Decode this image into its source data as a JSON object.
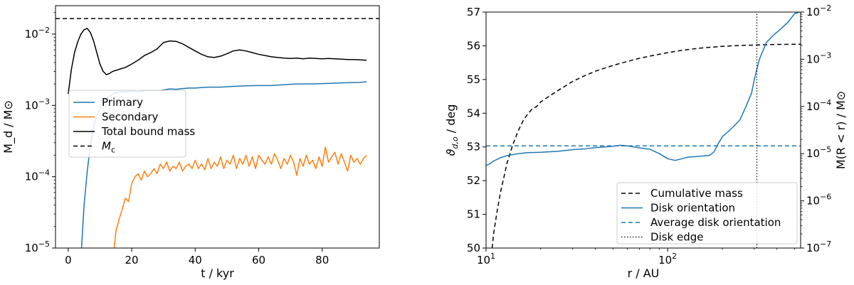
{
  "chart_data": [
    {
      "type": "line",
      "xlabel": "t / kyr",
      "ylabel": "M$_d$ / M$_\\odot$",
      "ylabel_display": "M_d / M⊙",
      "yscale": "log",
      "xlim": [
        -4,
        98
      ],
      "ylim": [
        1e-05,
        0.025
      ],
      "xticks": [
        0,
        20,
        40,
        60,
        80
      ],
      "xtick_labels": [
        "0",
        "20",
        "40",
        "60",
        "80"
      ],
      "yticks": [
        1e-05,
        0.0001,
        0.001,
        0.01
      ],
      "ytick_labels": [
        {
          "base": "10",
          "exp": "−5"
        },
        {
          "base": "10",
          "exp": "−4"
        },
        {
          "base": "10",
          "exp": "−3"
        },
        {
          "base": "10",
          "exp": "−2"
        }
      ],
      "grid": false,
      "legend_position": "center-left",
      "series": [
        {
          "name": "Primary",
          "color": "#1f77b4",
          "style": "solid",
          "x": [
            4.2,
            5,
            6,
            7,
            8,
            9,
            10,
            11,
            12,
            13,
            14,
            15,
            16,
            18,
            20,
            22,
            24,
            26,
            28,
            30,
            32,
            34,
            36,
            38,
            40,
            44,
            48,
            52,
            56,
            60,
            64,
            68,
            72,
            76,
            80,
            84,
            88,
            92,
            94
          ],
          "y": [
            1e-05,
            4e-05,
            0.00012,
            0.00028,
            0.0005,
            0.0007,
            0.0009,
            0.0011,
            0.00125,
            0.00135,
            0.00145,
            0.0015,
            0.00155,
            0.00155,
            0.00158,
            0.00155,
            0.0016,
            0.00162,
            0.0016,
            0.00165,
            0.0017,
            0.00168,
            0.00172,
            0.00175,
            0.00175,
            0.0018,
            0.0018,
            0.00185,
            0.00188,
            0.0019,
            0.0019,
            0.00195,
            0.002,
            0.002,
            0.00202,
            0.00205,
            0.00208,
            0.0021,
            0.00215
          ]
        },
        {
          "name": "Secondary",
          "color": "#ff7f0e",
          "style": "solid",
          "x": [
            14.5,
            15,
            16,
            17,
            18,
            19,
            20,
            21,
            22,
            23,
            24,
            25,
            26,
            27,
            28,
            29,
            30,
            31,
            32,
            33,
            34,
            35,
            36,
            37,
            38,
            39,
            40,
            41,
            42,
            43,
            44,
            45,
            46,
            47,
            48,
            49,
            50,
            51,
            52,
            53,
            54,
            55,
            56,
            57,
            58,
            59,
            60,
            61,
            62,
            63,
            64,
            65,
            66,
            67,
            68,
            69,
            70,
            71,
            72,
            73,
            74,
            75,
            76,
            77,
            78,
            79,
            80,
            81,
            82,
            83,
            84,
            85,
            86,
            87,
            88,
            89,
            90,
            91,
            92,
            93,
            94
          ],
          "y": [
            1e-05,
            1.7e-05,
            2.5e-05,
            3.5e-05,
            5e-05,
            4.5e-05,
            8e-05,
            0.0001,
            0.00011,
            9e-05,
            0.00012,
            0.0001,
            0.00011,
            0.00013,
            0.00011,
            0.00015,
            0.00013,
            0.00016,
            0.00012,
            0.00014,
            0.00013,
            0.00016,
            0.00012,
            0.00014,
            0.00015,
            0.00013,
            0.00017,
            0.00013,
            0.00015,
            0.000125,
            0.00018,
            0.00013,
            0.00016,
            0.00014,
            0.00019,
            0.00013,
            0.00017,
            0.00015,
            0.0002,
            0.00013,
            0.00018,
            0.00015,
            0.0002,
            0.00014,
            0.00019,
            0.00013,
            0.0002,
            0.00017,
            0.00015,
            0.00019,
            0.00015,
            0.00021,
            0.00017,
            0.00013,
            0.00018,
            0.00015,
            0.0002,
            0.00016,
            0.000105,
            0.00018,
            0.00014,
            0.0002,
            0.00015,
            0.00017,
            0.00013,
            0.00019,
            0.00014,
            0.00026,
            0.00016,
            0.00019,
            0.00022,
            0.00015,
            0.00021,
            0.00016,
            0.00012,
            0.0002,
            0.00016,
            0.00018,
            0.00015,
            0.00018,
            0.0002
          ]
        },
        {
          "name": "Total bound mass",
          "color": "#000000",
          "style": "solid",
          "x": [
            0,
            1,
            2,
            3,
            4,
            5,
            6,
            7,
            8,
            9,
            10,
            11,
            12,
            13,
            14,
            16,
            18,
            20,
            22,
            24,
            26,
            28,
            30,
            32,
            34,
            36,
            38,
            40,
            42,
            44,
            46,
            48,
            50,
            52,
            54,
            56,
            58,
            60,
            62,
            64,
            66,
            68,
            70,
            72,
            74,
            76,
            78,
            80,
            82,
            84,
            86,
            88,
            90,
            92,
            94
          ],
          "y": [
            0.00145,
            0.0032,
            0.0055,
            0.0078,
            0.01,
            0.0115,
            0.012,
            0.0105,
            0.008,
            0.0055,
            0.0038,
            0.003,
            0.0027,
            0.0028,
            0.003,
            0.0032,
            0.0034,
            0.0038,
            0.0043,
            0.005,
            0.0055,
            0.0062,
            0.0076,
            0.008,
            0.0079,
            0.0073,
            0.0065,
            0.0058,
            0.0052,
            0.0048,
            0.0047,
            0.0049,
            0.0053,
            0.0058,
            0.006,
            0.0058,
            0.0055,
            0.0052,
            0.005,
            0.0048,
            0.0047,
            0.0046,
            0.00455,
            0.0046,
            0.0045,
            0.0046,
            0.00455,
            0.0045,
            0.00455,
            0.0045,
            0.00445,
            0.0044,
            0.0044,
            0.00435,
            0.0043
          ]
        },
        {
          "name": "$M_{\\rm c}$",
          "color": "#000000",
          "style": "dashed",
          "x": [
            -4,
            98
          ],
          "y": [
            0.0165,
            0.0165
          ]
        }
      ],
      "legend": [
        {
          "label": "Primary",
          "color": "#1f77b4",
          "style": "solid"
        },
        {
          "label": "Secondary",
          "color": "#ff7f0e",
          "style": "solid"
        },
        {
          "label": "Total bound mass",
          "color": "#000000",
          "style": "solid"
        },
        {
          "label": "M",
          "sub": "c",
          "color": "#000000",
          "style": "dashed"
        }
      ]
    },
    {
      "type": "line",
      "xlabel": "r / AU",
      "xscale": "log",
      "xlim": [
        10,
        540
      ],
      "xticks": [
        10,
        100
      ],
      "xtick_labels": [
        {
          "base": "10",
          "exp": "1"
        },
        {
          "base": "10",
          "exp": "2"
        }
      ],
      "xminor_ticks": [
        20,
        30,
        40,
        50,
        60,
        70,
        80,
        90,
        200,
        300,
        400,
        500
      ],
      "ylabel_left": "ϑ_{d,o} / deg",
      "ylim_left": [
        50,
        57
      ],
      "yticks_left": [
        50,
        51,
        52,
        53,
        54,
        55,
        56,
        57
      ],
      "ylabel_right": "M(R < r) / M⊙",
      "yscale_right": "log",
      "ylim_right": [
        1e-07,
        0.01
      ],
      "yticks_right": [
        1e-07,
        1e-06,
        1e-05,
        0.0001,
        0.001,
        0.01
      ],
      "ytick_labels_right": [
        {
          "base": "10",
          "exp": "−7"
        },
        {
          "base": "10",
          "exp": "−6"
        },
        {
          "base": "10",
          "exp": "−5"
        },
        {
          "base": "10",
          "exp": "−4"
        },
        {
          "base": "10",
          "exp": "−3"
        },
        {
          "base": "10",
          "exp": "−2"
        }
      ],
      "grid": false,
      "legend_position": "lower-right",
      "series": [
        {
          "name": "Cumulative mass",
          "axis": "right",
          "color": "#000000",
          "style": "dashed",
          "x": [
            10.8,
            11,
            11.5,
            12,
            12.5,
            13,
            14,
            15,
            16,
            17,
            18,
            19,
            20,
            22,
            25,
            30,
            35,
            40,
            50,
            60,
            70,
            80,
            100,
            120,
            150,
            200,
            250,
            300,
            350,
            400,
            450,
            500,
            540
          ],
          "y": [
            1e-07,
            2e-07,
            6e-07,
            1.5e-06,
            3e-06,
            6e-06,
            1.5e-05,
            3e-05,
            5e-05,
            7e-05,
            9e-05,
            0.0001,
            0.000125,
            0.00016,
            0.00022,
            0.00034,
            0.00045,
            0.00056,
            0.00074,
            0.0009,
            0.00105,
            0.00117,
            0.00138,
            0.00155,
            0.00172,
            0.00188,
            0.00196,
            0.002,
            0.00204,
            0.00206,
            0.00207,
            0.00208,
            0.00208
          ]
        },
        {
          "name": "Disk orientation",
          "axis": "left",
          "color": "#1f77b4",
          "style": "solid",
          "x": [
            10,
            10.5,
            11,
            12,
            13,
            14,
            15,
            17,
            20,
            25,
            30,
            35,
            40,
            45,
            50,
            55,
            60,
            70,
            80,
            90,
            100,
            110,
            120,
            130,
            150,
            170,
            180,
            190,
            200,
            210,
            230,
            250,
            270,
            290,
            300,
            320,
            350,
            380,
            420,
            460,
            500,
            530
          ],
          "y": [
            52.45,
            52.5,
            52.58,
            52.68,
            52.74,
            52.77,
            52.8,
            52.83,
            52.84,
            52.87,
            52.92,
            52.94,
            52.98,
            53.0,
            53.02,
            53.05,
            53.03,
            52.97,
            52.93,
            52.8,
            52.65,
            52.6,
            52.65,
            52.7,
            52.72,
            52.75,
            52.85,
            53.1,
            53.3,
            53.4,
            53.6,
            53.8,
            54.2,
            54.6,
            55.0,
            55.6,
            56.1,
            56.3,
            56.5,
            56.7,
            56.95,
            57.0
          ]
        },
        {
          "name": "Average disk orientation",
          "axis": "left",
          "color": "#1f77b4",
          "style": "dashed",
          "x": [
            10,
            540
          ],
          "y": [
            53.03,
            53.03
          ]
        },
        {
          "name": "Disk edge",
          "axis": "left",
          "color": "#000000",
          "style": "dotted",
          "x": [
            310,
            310
          ],
          "y": [
            50,
            57
          ]
        }
      ],
      "legend": [
        {
          "label": "Cumulative mass",
          "color": "#000000",
          "style": "dashed"
        },
        {
          "label": "Disk orientation",
          "color": "#1f77b4",
          "style": "solid"
        },
        {
          "label": "Average disk orientation",
          "color": "#1f77b4",
          "style": "dashed"
        },
        {
          "label": "Disk edge",
          "color": "#000000",
          "style": "dotted"
        }
      ]
    }
  ]
}
